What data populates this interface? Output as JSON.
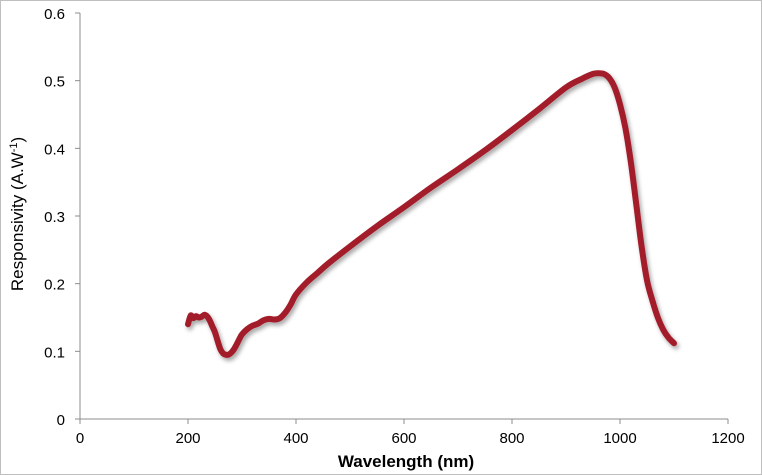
{
  "chart_data": {
    "type": "line",
    "xlabel": "Wavelength (nm)",
    "ylabel_main": "Responsivity (A.W",
    "ylabel_sup": "-1",
    "ylabel_end": ")",
    "xlim": [
      0,
      1200
    ],
    "ylim": [
      0,
      0.6
    ],
    "xticks": [
      "0",
      "200",
      "400",
      "600",
      "800",
      "1000",
      "1200"
    ],
    "yticks": [
      "0",
      "0.1",
      "0.2",
      "0.3",
      "0.4",
      "0.5",
      "0.6"
    ],
    "grid": false,
    "legend": "none",
    "series": [
      {
        "color": "#a31e2c",
        "x": [
          200,
          205,
          210,
          215,
          220,
          225,
          230,
          235,
          240,
          245,
          250,
          255,
          260,
          265,
          270,
          275,
          280,
          285,
          290,
          295,
          300,
          310,
          320,
          330,
          340,
          350,
          360,
          370,
          380,
          390,
          400,
          420,
          440,
          460,
          500,
          550,
          600,
          650,
          700,
          750,
          800,
          850,
          900,
          930,
          950,
          960,
          970,
          980,
          990,
          1000,
          1010,
          1020,
          1030,
          1040,
          1050,
          1060,
          1070,
          1080,
          1090,
          1100
        ],
        "y": [
          0.14,
          0.153,
          0.149,
          0.152,
          0.15,
          0.151,
          0.154,
          0.152,
          0.146,
          0.137,
          0.128,
          0.115,
          0.103,
          0.097,
          0.095,
          0.095,
          0.098,
          0.103,
          0.11,
          0.118,
          0.125,
          0.133,
          0.138,
          0.141,
          0.146,
          0.148,
          0.147,
          0.149,
          0.157,
          0.169,
          0.184,
          0.202,
          0.216,
          0.23,
          0.255,
          0.285,
          0.313,
          0.342,
          0.369,
          0.397,
          0.427,
          0.458,
          0.49,
          0.503,
          0.51,
          0.511,
          0.51,
          0.504,
          0.49,
          0.465,
          0.43,
          0.38,
          0.318,
          0.255,
          0.205,
          0.175,
          0.15,
          0.132,
          0.12,
          0.112
        ]
      }
    ]
  }
}
